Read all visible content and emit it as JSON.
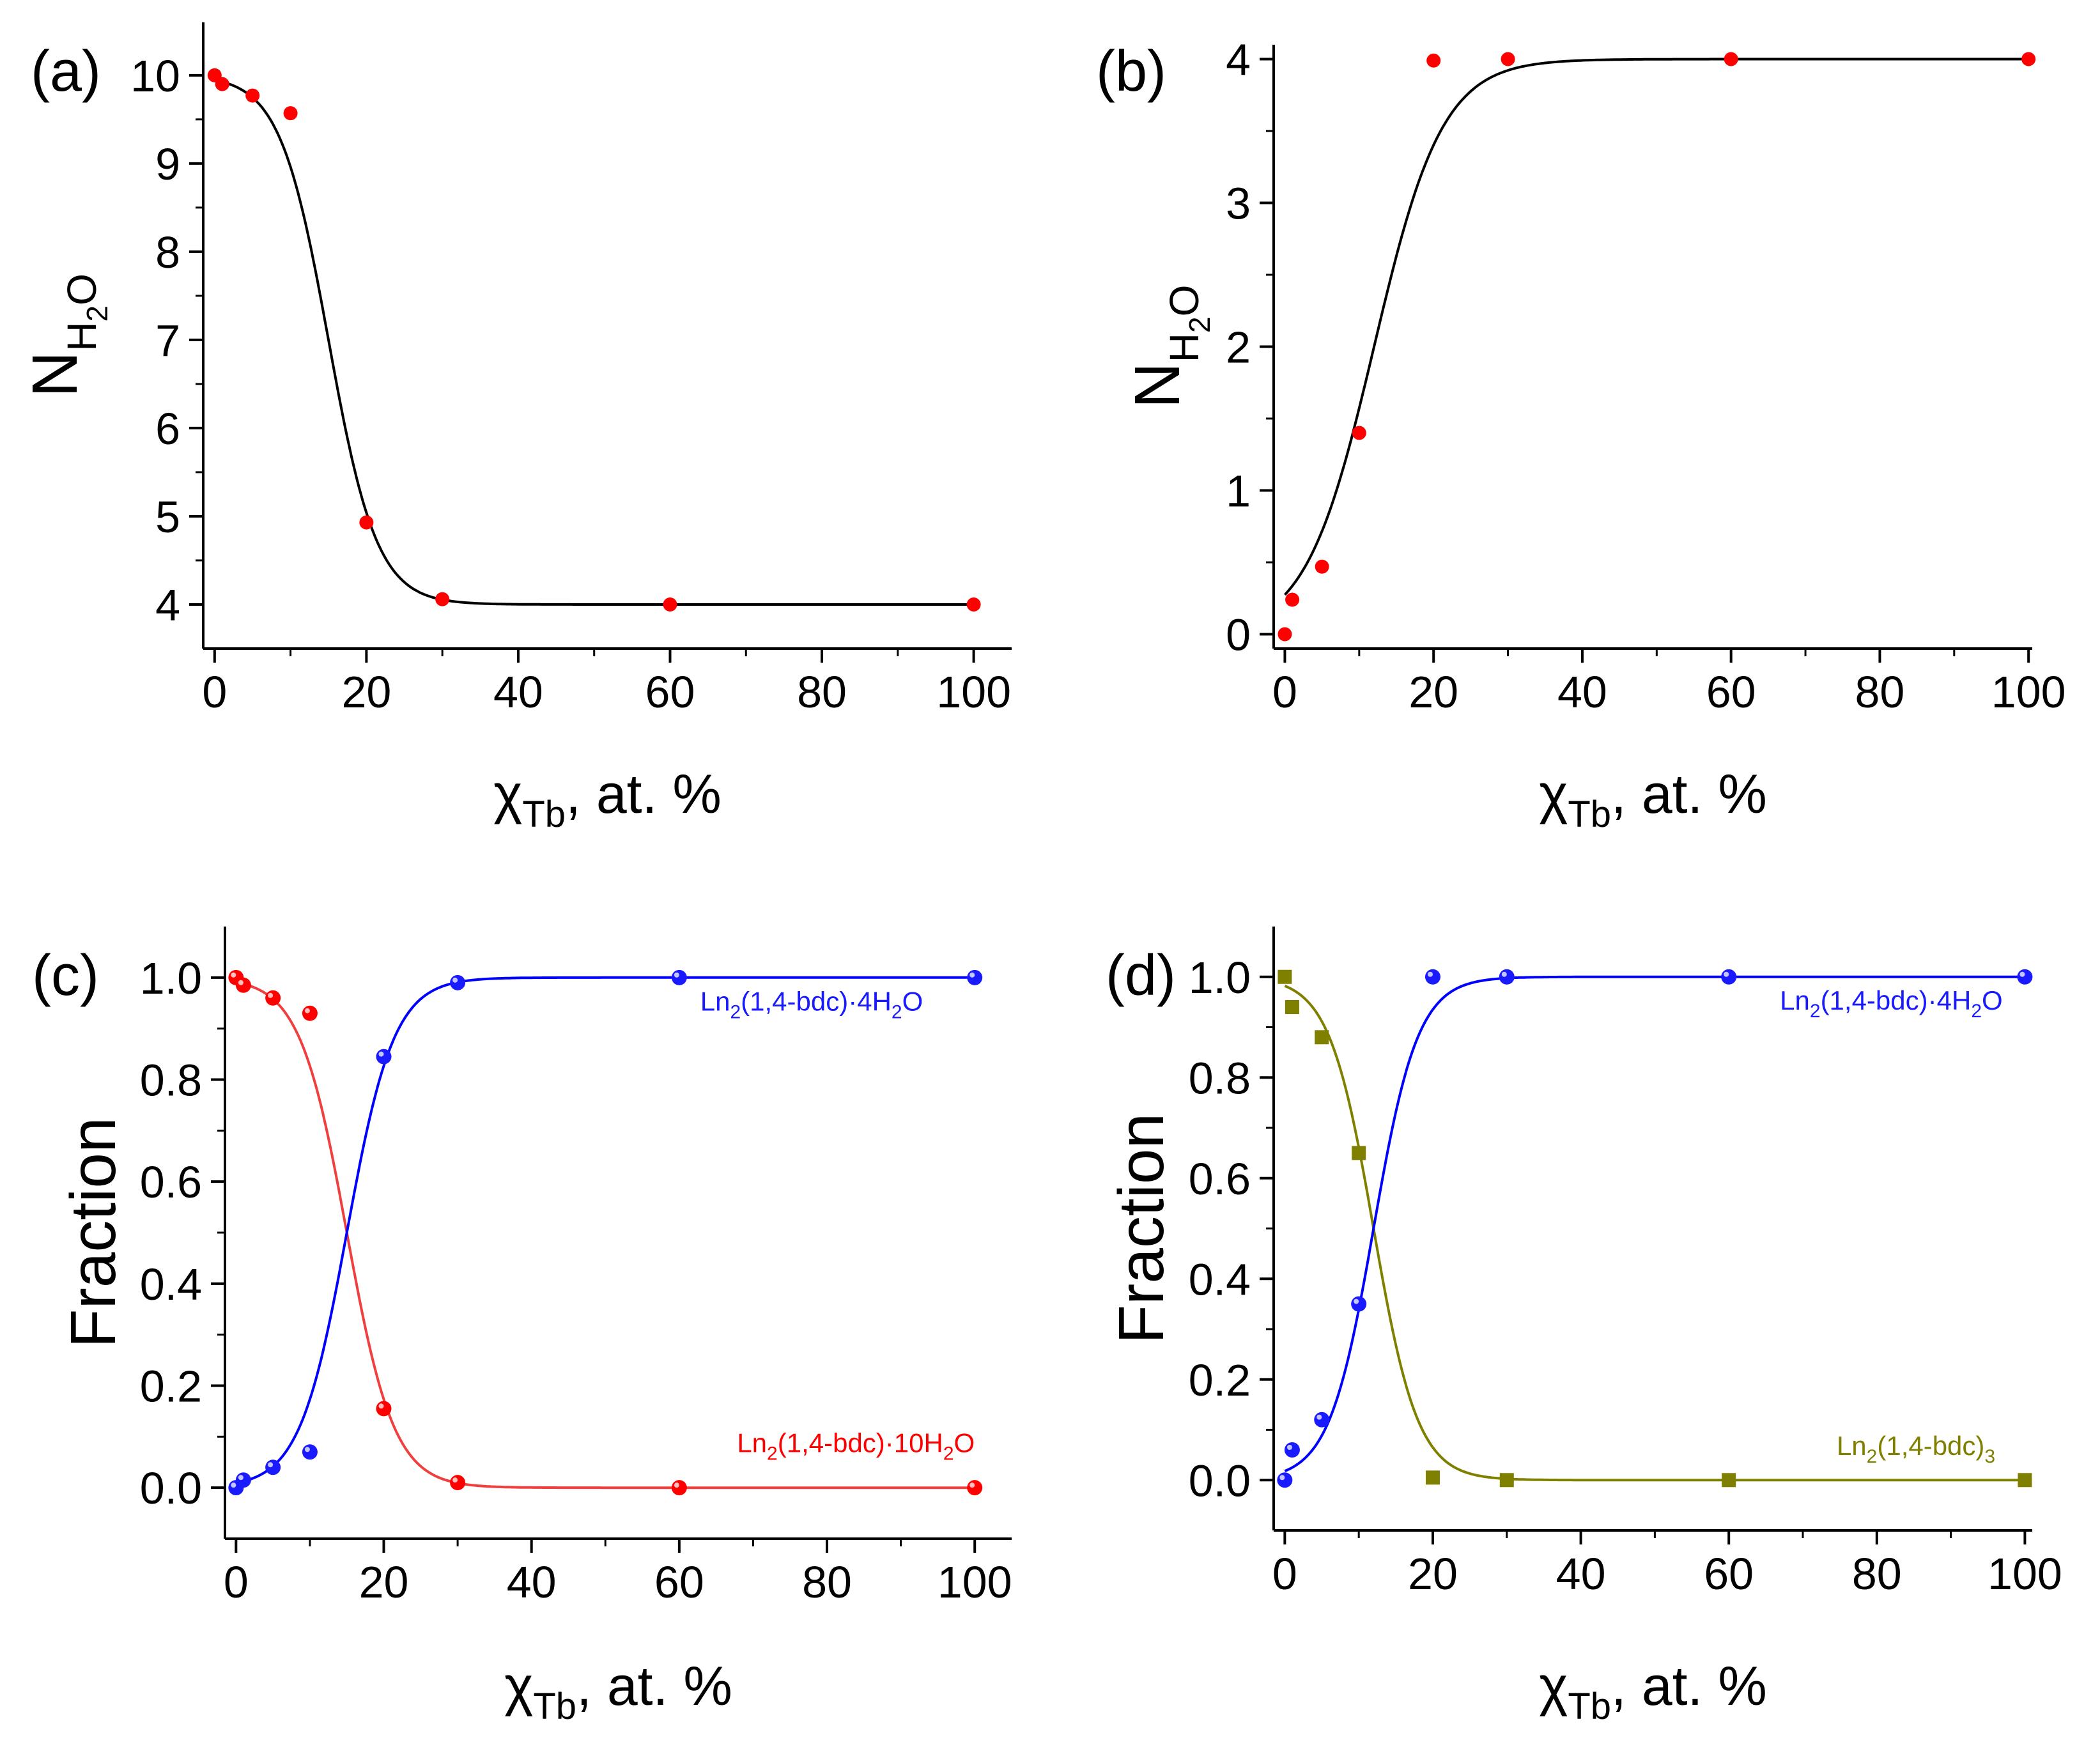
{
  "chart_data": [
    {
      "panel_label": "(a)",
      "type": "scatter",
      "xlabel": {
        "main": "χ",
        "sub": "Tb",
        "rest": ", at. %"
      },
      "ylabel": {
        "main": "N",
        "sub": "H",
        "sub2": "2",
        "sub3": "O"
      },
      "xlim": [
        -1.5,
        105
      ],
      "ylim": [
        3.5,
        10.6
      ],
      "xticks": [
        0,
        20,
        40,
        60,
        80,
        100
      ],
      "xtick_labels": [
        "0",
        "20",
        "40",
        "60",
        "80",
        "100"
      ],
      "yticks": [
        4,
        5,
        6,
        7,
        8,
        9,
        10
      ],
      "ytick_labels": [
        "4",
        "5",
        "6",
        "7",
        "8",
        "9",
        "10"
      ],
      "series": [
        {
          "name": "N_H2O",
          "color": "#ff0000",
          "marker": "circle",
          "x": [
            0,
            1,
            5,
            10,
            20,
            30,
            60,
            100
          ],
          "y": [
            10.0,
            9.9,
            9.77,
            9.57,
            4.93,
            4.06,
            4.0,
            4.0
          ],
          "fit": {
            "kind": "sigmoid-down",
            "top": 10.0,
            "bottom": 4.0,
            "x0": 15.0,
            "width": 3.2,
            "color": "#000000"
          }
        }
      ]
    },
    {
      "panel_label": "(b)",
      "type": "scatter",
      "xlabel": {
        "main": "χ",
        "sub": "Tb",
        "rest": ", at. %"
      },
      "ylabel": {
        "main": "N",
        "sub": "H",
        "sub2": "2",
        "sub3": "O"
      },
      "xlim": [
        -1.5,
        100.5
      ],
      "ylim": [
        -0.1,
        4.1
      ],
      "xticks": [
        0,
        20,
        40,
        60,
        80,
        100
      ],
      "xtick_labels": [
        "0",
        "20",
        "40",
        "60",
        "80",
        "100"
      ],
      "yticks": [
        0,
        1,
        2,
        3,
        4
      ],
      "ytick_labels": [
        "0",
        "1",
        "2",
        "3",
        "4"
      ],
      "series": [
        {
          "name": "N_H2O",
          "color": "#ff0000",
          "marker": "circle",
          "x": [
            0,
            1,
            5,
            10,
            20,
            30,
            60,
            100
          ],
          "y": [
            0.0,
            0.24,
            0.47,
            1.4,
            3.99,
            4.0,
            4.0,
            4.0
          ],
          "fit": {
            "kind": "sigmoid-up",
            "top": 4.0,
            "bottom": 0.0,
            "x0": 12.0,
            "width": 4.6,
            "color": "#000000"
          }
        }
      ]
    },
    {
      "panel_label": "(c)",
      "type": "scatter",
      "xlabel": {
        "main": "χ",
        "sub": "Tb",
        "rest": ", at. %"
      },
      "ylabel": {
        "main": "Fraction"
      },
      "xlim": [
        -1.5,
        105
      ],
      "ylim": [
        -0.1,
        1.1
      ],
      "xticks": [
        0,
        20,
        40,
        60,
        80,
        100
      ],
      "xtick_labels": [
        "0",
        "20",
        "40",
        "60",
        "80",
        "100"
      ],
      "yticks": [
        0.0,
        0.2,
        0.4,
        0.6,
        0.8,
        1.0
      ],
      "ytick_labels": [
        "0.0",
        "0.2",
        "0.4",
        "0.6",
        "0.8",
        "1.0"
      ],
      "series": [
        {
          "name": "Ln2(1,4-bdc)·10H2O",
          "label_parts": [
            "Ln",
            "2",
            "(1,4-bdc)·10H",
            "2",
            "O"
          ],
          "label_x": 100,
          "label_y": 0.07,
          "color": "#ff0000",
          "marker": "circle",
          "x": [
            0,
            1,
            5,
            10,
            20,
            30,
            60,
            100
          ],
          "y": [
            1.0,
            0.985,
            0.96,
            0.93,
            0.155,
            0.01,
            0.0,
            0.0
          ],
          "fit": {
            "kind": "sigmoid-down",
            "top": 1.0,
            "bottom": 0.0,
            "x0": 15.0,
            "width": 3.2,
            "color": "#ef3f3f"
          }
        },
        {
          "name": "Ln2(1,4-bdc)·4H2O",
          "label_parts": [
            "Ln",
            "2",
            "(1,4-bdc)·4H",
            "2",
            "O"
          ],
          "label_x": 93,
          "label_y": 0.935,
          "color": "#1a1aff",
          "marker": "circle",
          "x": [
            0,
            1,
            5,
            10,
            20,
            30,
            60,
            100
          ],
          "y": [
            0.0,
            0.015,
            0.04,
            0.07,
            0.845,
            0.99,
            1.0,
            1.0
          ],
          "fit": {
            "kind": "sigmoid-up",
            "top": 1.0,
            "bottom": 0.0,
            "x0": 15.0,
            "width": 3.2,
            "color": "#0000ff"
          }
        }
      ]
    },
    {
      "panel_label": "(d)",
      "type": "scatter",
      "xlabel": {
        "main": "χ",
        "sub": "Tb",
        "rest": ", at. %"
      },
      "ylabel": {
        "main": "Fraction"
      },
      "xlim": [
        -1.5,
        101
      ],
      "ylim": [
        -0.1,
        1.1
      ],
      "xticks": [
        0,
        20,
        40,
        60,
        80,
        100
      ],
      "xtick_labels": [
        "0",
        "20",
        "40",
        "60",
        "80",
        "100"
      ],
      "yticks": [
        0.0,
        0.2,
        0.4,
        0.6,
        0.8,
        1.0
      ],
      "ytick_labels": [
        "0.0",
        "0.2",
        "0.4",
        "0.6",
        "0.8",
        "1.0"
      ],
      "series": [
        {
          "name": "Ln2(1,4-bdc)3",
          "label_parts": [
            "Ln",
            "2",
            "(1,4-bdc)",
            "3",
            ""
          ],
          "label_x": 96,
          "label_y": 0.05,
          "color": "#808000",
          "marker": "square",
          "x": [
            0,
            1,
            5,
            10,
            20,
            30,
            60,
            100
          ],
          "y": [
            1.0,
            0.94,
            0.88,
            0.65,
            0.005,
            0.0,
            0.0,
            0.0
          ],
          "fit": {
            "kind": "sigmoid-down",
            "top": 1.0,
            "bottom": 0.0,
            "x0": 12.0,
            "width": 3.0,
            "color": "#808000"
          }
        },
        {
          "name": "Ln2(1,4-bdc)·4H2O",
          "label_parts": [
            "Ln",
            "2",
            "(1,4-bdc)·4H",
            "2",
            "O"
          ],
          "label_x": 97,
          "label_y": 0.935,
          "color": "#1a1aff",
          "marker": "circle",
          "x": [
            0,
            1,
            5,
            10,
            20,
            30,
            60,
            100
          ],
          "y": [
            0.0,
            0.06,
            0.12,
            0.35,
            1.0,
            1.0,
            1.0,
            1.0
          ],
          "fit": {
            "kind": "sigmoid-up",
            "top": 1.0,
            "bottom": 0.0,
            "x0": 12.0,
            "width": 3.0,
            "color": "#0000ff"
          }
        }
      ]
    }
  ]
}
